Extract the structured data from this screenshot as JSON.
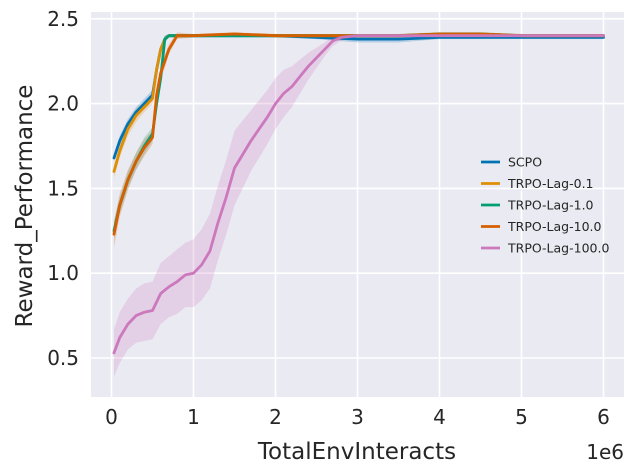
{
  "chart_data": {
    "type": "line",
    "title": "",
    "xlabel": "TotalEnvInteracts",
    "ylabel": "Reward_Performance",
    "x_offset_label": "1e6",
    "xlim": [
      -250000,
      6250000
    ],
    "ylim": [
      0.27,
      2.54
    ],
    "xticks": [
      0,
      1000000,
      2000000,
      3000000,
      4000000,
      5000000,
      6000000
    ],
    "xtick_labels": [
      "0",
      "1",
      "2",
      "3",
      "4",
      "5",
      "6"
    ],
    "yticks": [
      0.5,
      1.0,
      1.5,
      2.0,
      2.5
    ],
    "ytick_labels": [
      "0.5",
      "1.0",
      "1.5",
      "2.0",
      "2.5"
    ],
    "grid": true,
    "legend_position": "center-right",
    "series": [
      {
        "name": "SCPO",
        "color": "#0173b2",
        "x": [
          30000,
          100000,
          200000,
          300000,
          400000,
          500000,
          550000,
          600000,
          650000,
          700000,
          800000,
          1000000,
          1500000,
          2000000,
          2500000,
          3000000,
          3500000,
          4000000,
          4500000,
          5000000,
          5500000,
          6000000
        ],
        "y": [
          1.68,
          1.78,
          1.88,
          1.95,
          2.0,
          2.05,
          2.2,
          2.32,
          2.38,
          2.4,
          2.4,
          2.4,
          2.4,
          2.4,
          2.39,
          2.38,
          2.38,
          2.39,
          2.39,
          2.39,
          2.39,
          2.39
        ],
        "band": [
          0.02,
          0.03,
          0.03,
          0.03,
          0.03,
          0.03,
          0.03,
          0.02,
          0.02,
          0.01,
          0.01,
          0.01,
          0.01,
          0.01,
          0.01,
          0.02,
          0.02,
          0.01,
          0.01,
          0.01,
          0.01,
          0.01
        ]
      },
      {
        "name": "TRPO-Lag-0.1",
        "color": "#de8f05",
        "x": [
          30000,
          100000,
          200000,
          300000,
          400000,
          500000,
          550000,
          600000,
          650000,
          700000,
          800000,
          1000000,
          1500000,
          2000000,
          2500000,
          3000000,
          3500000,
          4000000,
          4500000,
          5000000,
          5500000,
          6000000
        ],
        "y": [
          1.6,
          1.72,
          1.85,
          1.93,
          1.98,
          2.03,
          2.2,
          2.32,
          2.38,
          2.4,
          2.4,
          2.4,
          2.41,
          2.4,
          2.4,
          2.4,
          2.4,
          2.41,
          2.41,
          2.4,
          2.4,
          2.4
        ],
        "band": [
          0.04,
          0.04,
          0.04,
          0.04,
          0.03,
          0.03,
          0.03,
          0.02,
          0.02,
          0.01,
          0.01,
          0.01,
          0.01,
          0.01,
          0.01,
          0.01,
          0.01,
          0.01,
          0.01,
          0.01,
          0.01,
          0.01
        ]
      },
      {
        "name": "TRPO-Lag-1.0",
        "color": "#029e73",
        "x": [
          30000,
          100000,
          200000,
          300000,
          400000,
          500000,
          550000,
          600000,
          650000,
          700000,
          800000,
          1000000,
          1500000,
          2000000,
          2500000,
          3000000,
          3500000,
          4000000,
          4500000,
          5000000,
          5500000,
          6000000
        ],
        "y": [
          1.25,
          1.4,
          1.55,
          1.66,
          1.75,
          1.82,
          2.0,
          2.15,
          2.38,
          2.4,
          2.4,
          2.4,
          2.4,
          2.4,
          2.4,
          2.4,
          2.4,
          2.41,
          2.41,
          2.4,
          2.4,
          2.4
        ],
        "band": [
          0.05,
          0.05,
          0.05,
          0.05,
          0.05,
          0.04,
          0.04,
          0.03,
          0.02,
          0.01,
          0.01,
          0.01,
          0.01,
          0.01,
          0.01,
          0.01,
          0.01,
          0.01,
          0.01,
          0.01,
          0.01,
          0.01
        ]
      },
      {
        "name": "TRPO-Lag-10.0",
        "color": "#d55e00",
        "x": [
          30000,
          100000,
          200000,
          300000,
          400000,
          500000,
          550000,
          600000,
          650000,
          700000,
          800000,
          1000000,
          1500000,
          2000000,
          2500000,
          3000000,
          3500000,
          4000000,
          4500000,
          5000000,
          5500000,
          6000000
        ],
        "y": [
          1.23,
          1.4,
          1.55,
          1.66,
          1.74,
          1.8,
          2.05,
          2.18,
          2.25,
          2.32,
          2.4,
          2.4,
          2.41,
          2.4,
          2.4,
          2.4,
          2.4,
          2.41,
          2.41,
          2.4,
          2.4,
          2.4
        ],
        "band": [
          0.08,
          0.07,
          0.06,
          0.05,
          0.05,
          0.04,
          0.04,
          0.04,
          0.04,
          0.03,
          0.02,
          0.01,
          0.01,
          0.01,
          0.01,
          0.01,
          0.01,
          0.01,
          0.01,
          0.01,
          0.01,
          0.01
        ]
      },
      {
        "name": "TRPO-Lag-100.0",
        "color": "#cc78bc",
        "x": [
          30000,
          100000,
          200000,
          300000,
          400000,
          500000,
          600000,
          700000,
          800000,
          900000,
          1000000,
          1100000,
          1200000,
          1300000,
          1400000,
          1500000,
          1600000,
          1700000,
          1800000,
          1900000,
          2000000,
          2100000,
          2200000,
          2300000,
          2400000,
          2500000,
          2600000,
          2700000,
          2800000,
          3000000,
          3500000,
          4000000,
          4500000,
          5000000,
          5500000,
          6000000
        ],
        "y": [
          0.53,
          0.62,
          0.7,
          0.75,
          0.77,
          0.78,
          0.88,
          0.92,
          0.95,
          0.99,
          1.0,
          1.05,
          1.13,
          1.3,
          1.45,
          1.62,
          1.7,
          1.78,
          1.85,
          1.92,
          2.0,
          2.06,
          2.1,
          2.16,
          2.22,
          2.27,
          2.32,
          2.37,
          2.39,
          2.4,
          2.4,
          2.4,
          2.4,
          2.4,
          2.4,
          2.4
        ],
        "band": [
          0.14,
          0.15,
          0.15,
          0.16,
          0.17,
          0.17,
          0.18,
          0.18,
          0.19,
          0.19,
          0.2,
          0.21,
          0.22,
          0.22,
          0.22,
          0.22,
          0.2,
          0.18,
          0.17,
          0.16,
          0.15,
          0.14,
          0.12,
          0.1,
          0.08,
          0.06,
          0.04,
          0.03,
          0.02,
          0.01,
          0.01,
          0.01,
          0.01,
          0.01,
          0.01,
          0.01
        ]
      }
    ]
  },
  "style": {
    "plot_background": "#eaeaf2",
    "grid_color": "#ffffff",
    "text_color": "#262626"
  }
}
